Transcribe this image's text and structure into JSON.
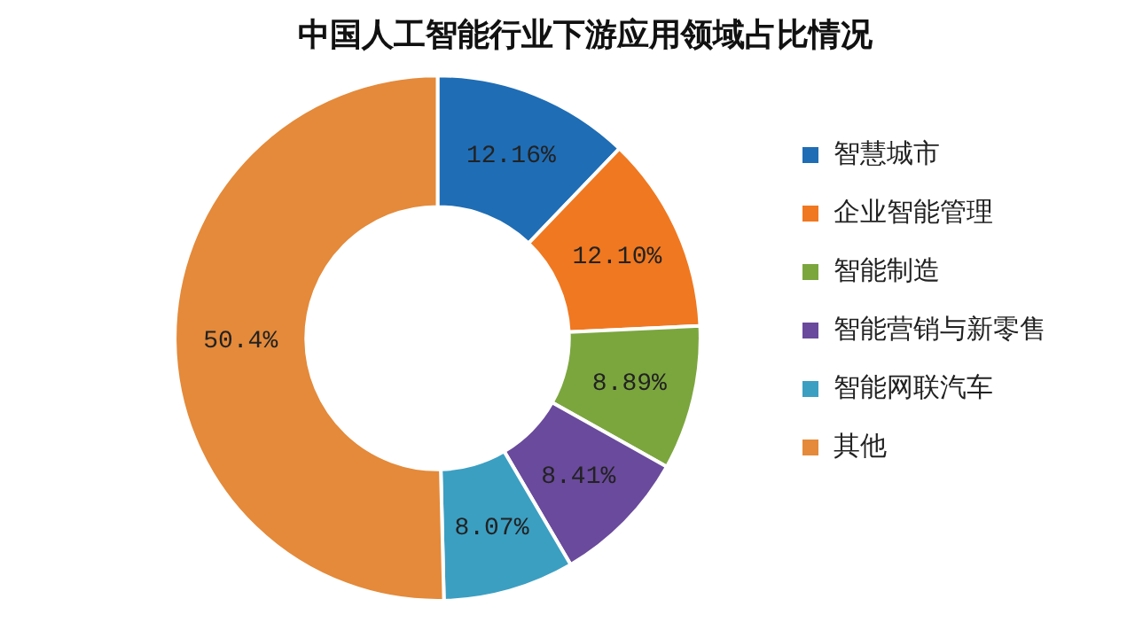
{
  "chart_data": {
    "type": "donut",
    "title": "中国人工智能行业下游应用领域占比情况",
    "categories": [
      "智慧城市",
      "企业智能管理",
      "智能制造",
      "智能营销与新零售",
      "智能网联汽车",
      "其他"
    ],
    "values": [
      12.16,
      12.1,
      8.89,
      8.41,
      8.07,
      50.4
    ],
    "value_labels": [
      "12.16%",
      "12.10%",
      "8.89%",
      "8.41%",
      "8.07%",
      "50.4%"
    ],
    "colors": [
      "#1f6db5",
      "#f07820",
      "#7ba63e",
      "#6a4a9c",
      "#3b9fc2",
      "#e48a3a"
    ],
    "legend": "right"
  }
}
